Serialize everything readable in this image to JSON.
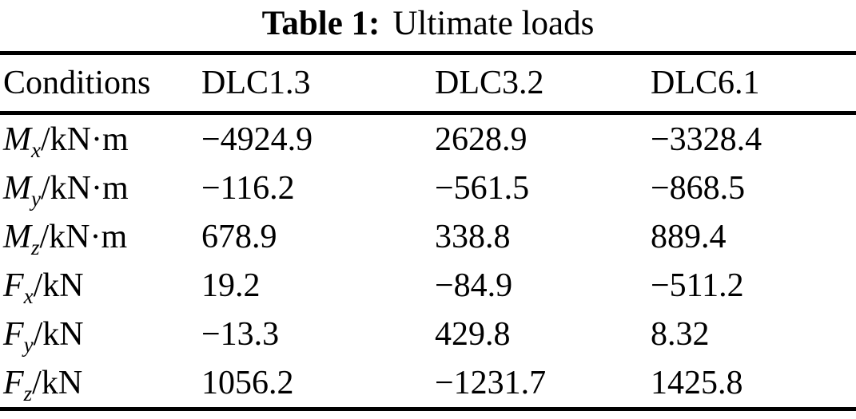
{
  "caption": {
    "label": "Table 1:",
    "text": "Ultimate loads"
  },
  "table": {
    "columns": [
      "Conditions",
      "DLC1.3",
      "DLC3.2",
      "DLC6.1"
    ],
    "rows": [
      {
        "symbol": "M",
        "subscript": "x",
        "unit": "/kN·m",
        "values": [
          "−4924.9",
          "2628.9",
          "−3328.4"
        ]
      },
      {
        "symbol": "M",
        "subscript": "y",
        "unit": "/kN·m",
        "values": [
          "−116.2",
          "−561.5",
          "−868.5"
        ]
      },
      {
        "symbol": "M",
        "subscript": "z",
        "unit": "/kN·m",
        "values": [
          "678.9",
          "338.8",
          "889.4"
        ]
      },
      {
        "symbol": "F",
        "subscript": "x",
        "unit": "/kN",
        "values": [
          "19.2",
          "−84.9",
          "−511.2"
        ]
      },
      {
        "symbol": "F",
        "subscript": "y",
        "unit": "/kN",
        "values": [
          "−13.3",
          "429.8",
          "8.32"
        ]
      },
      {
        "symbol": "F",
        "subscript": "z",
        "unit": "/kN",
        "values": [
          "1056.2",
          "−1231.7",
          "1425.8"
        ]
      }
    ],
    "colors": {
      "text": "#000000",
      "background": "#ffffff",
      "rule": "#000000"
    }
  }
}
